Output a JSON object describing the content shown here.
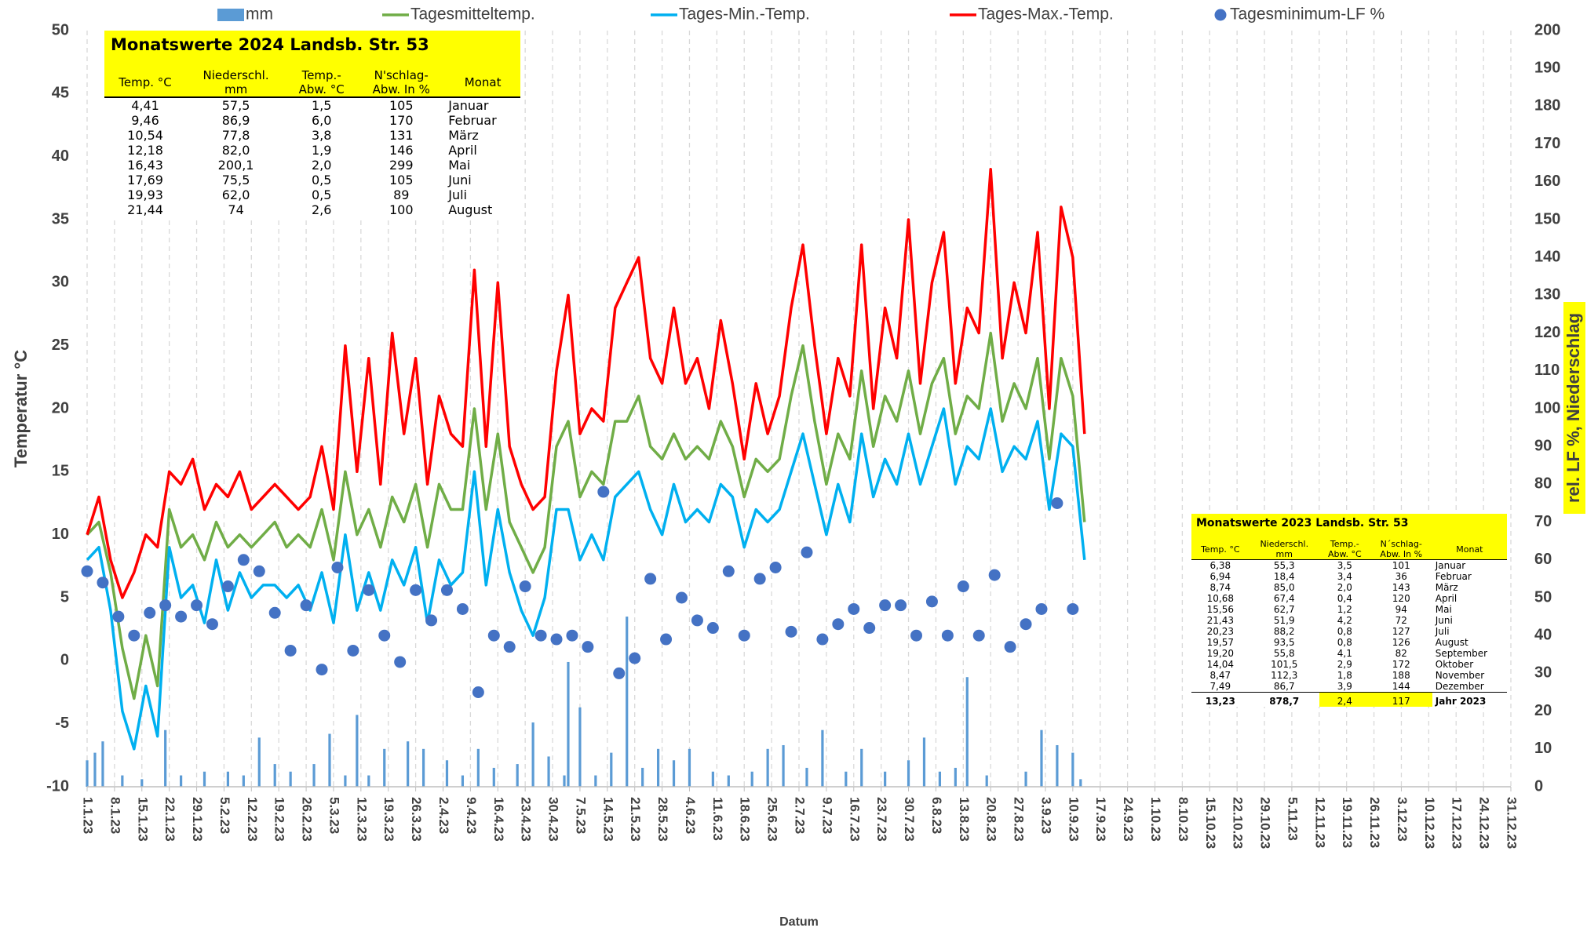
{
  "chart_data": {
    "type": "combo",
    "y_axis_label": "Temperatur °C",
    "y2_axis_label": "rel. LF %, Niederschlag",
    "x_axis_label": "Datum",
    "xlim": [
      0,
      364
    ],
    "xticks": [
      {
        "value": 0,
        "label": "1.1.23"
      },
      {
        "value": 7,
        "label": "8.1.23"
      },
      {
        "value": 14,
        "label": "15.1.23"
      },
      {
        "value": 21,
        "label": "22.1.23"
      },
      {
        "value": 28,
        "label": "29.1.23"
      },
      {
        "value": 35,
        "label": "5.2.23"
      },
      {
        "value": 42,
        "label": "12.2.23"
      },
      {
        "value": 49,
        "label": "19.2.23"
      },
      {
        "value": 56,
        "label": "26.2.23"
      },
      {
        "value": 63,
        "label": "5.3.23"
      },
      {
        "value": 70,
        "label": "12.3.23"
      },
      {
        "value": 77,
        "label": "19.3.23"
      },
      {
        "value": 84,
        "label": "26.3.23"
      },
      {
        "value": 91,
        "label": "2.4.23"
      },
      {
        "value": 98,
        "label": "9.4.23"
      },
      {
        "value": 105,
        "label": "16.4.23"
      },
      {
        "value": 112,
        "label": "23.4.23"
      },
      {
        "value": 119,
        "label": "30.4.23"
      },
      {
        "value": 126,
        "label": "7.5.23"
      },
      {
        "value": 133,
        "label": "14.5.23"
      },
      {
        "value": 140,
        "label": "21.5.23"
      },
      {
        "value": 147,
        "label": "28.5.23"
      },
      {
        "value": 154,
        "label": "4.6.23"
      },
      {
        "value": 161,
        "label": "11.6.23"
      },
      {
        "value": 168,
        "label": "18.6.23"
      },
      {
        "value": 175,
        "label": "25.6.23"
      },
      {
        "value": 182,
        "label": "2.7.23"
      },
      {
        "value": 189,
        "label": "9.7.23"
      },
      {
        "value": 196,
        "label": "16.7.23"
      },
      {
        "value": 203,
        "label": "23.7.23"
      },
      {
        "value": 210,
        "label": "30.7.23"
      },
      {
        "value": 217,
        "label": "6.8.23"
      },
      {
        "value": 224,
        "label": "13.8.23"
      },
      {
        "value": 231,
        "label": "20.8.23"
      },
      {
        "value": 238,
        "label": "27.8.23"
      },
      {
        "value": 245,
        "label": "3.9.23"
      },
      {
        "value": 252,
        "label": "10.9.23"
      },
      {
        "value": 259,
        "label": "17.9.23"
      },
      {
        "value": 266,
        "label": "24.9.23"
      },
      {
        "value": 273,
        "label": "1.10.23"
      },
      {
        "value": 280,
        "label": "8.10.23"
      },
      {
        "value": 287,
        "label": "15.10.23"
      },
      {
        "value": 294,
        "label": "22.10.23"
      },
      {
        "value": 301,
        "label": "29.10.23"
      },
      {
        "value": 308,
        "label": "5.11.23"
      },
      {
        "value": 315,
        "label": "12.11.23"
      },
      {
        "value": 322,
        "label": "19.11.23"
      },
      {
        "value": 329,
        "label": "26.11.23"
      },
      {
        "value": 336,
        "label": "3.12.23"
      },
      {
        "value": 343,
        "label": "10.12.23"
      },
      {
        "value": 350,
        "label": "17.12.23"
      },
      {
        "value": 357,
        "label": "24.12.23"
      },
      {
        "value": 364,
        "label": "31.12.23"
      }
    ],
    "ylim": [
      -10,
      50
    ],
    "yticks": [
      -10,
      -5,
      0,
      5,
      10,
      15,
      20,
      25,
      30,
      35,
      40,
      45,
      50
    ],
    "y2lim": [
      0,
      200
    ],
    "y2ticks": [
      0,
      10,
      20,
      30,
      40,
      50,
      60,
      70,
      80,
      90,
      100,
      110,
      120,
      130,
      140,
      150,
      160,
      170,
      180,
      190,
      200
    ],
    "grid": "x",
    "x": [
      0,
      3,
      6,
      9,
      12,
      15,
      18,
      21,
      24,
      27,
      30,
      33,
      36,
      39,
      42,
      45,
      48,
      51,
      54,
      57,
      60,
      63,
      66,
      69,
      72,
      75,
      78,
      81,
      84,
      87,
      90,
      93,
      96,
      99,
      102,
      105,
      108,
      111,
      114,
      117,
      120,
      123,
      126,
      129,
      132,
      135,
      138,
      141,
      144,
      147,
      150,
      153,
      156,
      159,
      162,
      165,
      168,
      171,
      174,
      177,
      180,
      183,
      186,
      189,
      192,
      195,
      198,
      201,
      204,
      207,
      210,
      213,
      216,
      219,
      222,
      225,
      228,
      231,
      234,
      237,
      240,
      243,
      246,
      249,
      252,
      255
    ],
    "series": [
      {
        "name": "mm",
        "type": "bar",
        "axis": "y2",
        "color": "#5b9bd5",
        "x": [
          0,
          2,
          4,
          9,
          14,
          20,
          24,
          30,
          36,
          40,
          44,
          48,
          52,
          58,
          62,
          66,
          69,
          72,
          76,
          82,
          86,
          92,
          96,
          100,
          104,
          110,
          114,
          118,
          122,
          123,
          126,
          130,
          134,
          138,
          142,
          146,
          150,
          154,
          160,
          164,
          170,
          174,
          178,
          184,
          188,
          194,
          198,
          204,
          210,
          214,
          218,
          222,
          225,
          230,
          240,
          244,
          248,
          252,
          254
        ],
        "values": [
          7,
          9,
          12,
          3,
          2,
          15,
          3,
          4,
          4,
          3,
          13,
          6,
          4,
          6,
          14,
          3,
          19,
          3,
          10,
          12,
          10,
          7,
          3,
          10,
          5,
          6,
          17,
          8,
          3,
          33,
          21,
          3,
          9,
          45,
          5,
          10,
          7,
          10,
          4,
          3,
          4,
          10,
          11,
          5,
          15,
          4,
          10,
          4,
          7,
          13,
          4,
          5,
          29,
          3,
          4,
          15,
          11,
          9,
          2
        ]
      },
      {
        "name": "Tagesmitteltemp.",
        "type": "line",
        "color": "#70ad47",
        "values": [
          10,
          11,
          7,
          1,
          -3,
          2,
          -2,
          12,
          9,
          10,
          8,
          11,
          9,
          10,
          9,
          10,
          11,
          9,
          10,
          9,
          12,
          8,
          15,
          10,
          12,
          9,
          13,
          11,
          14,
          9,
          14,
          12,
          12,
          20,
          12,
          18,
          11,
          9,
          7,
          9,
          17,
          19,
          13,
          15,
          14,
          19,
          19,
          21,
          17,
          16,
          18,
          16,
          17,
          16,
          19,
          17,
          13,
          16,
          15,
          16,
          21,
          25,
          19,
          14,
          18,
          16,
          23,
          17,
          21,
          19,
          23,
          18,
          22,
          24,
          18,
          21,
          20,
          26,
          19,
          22,
          20,
          24,
          16,
          24,
          21,
          11
        ]
      },
      {
        "name": "Tages-Min.-Temp.",
        "type": "line",
        "color": "#00b0f0",
        "values": [
          8,
          9,
          4,
          -4,
          -7,
          -2,
          -6,
          9,
          5,
          6,
          3,
          8,
          4,
          7,
          5,
          6,
          6,
          5,
          6,
          4,
          7,
          3,
          10,
          4,
          7,
          4,
          8,
          6,
          9,
          3,
          8,
          6,
          7,
          15,
          6,
          12,
          7,
          4,
          2,
          5,
          12,
          12,
          8,
          10,
          8,
          13,
          14,
          15,
          12,
          10,
          14,
          11,
          12,
          11,
          14,
          13,
          9,
          12,
          11,
          12,
          15,
          18,
          14,
          10,
          14,
          11,
          18,
          13,
          16,
          14,
          18,
          14,
          17,
          20,
          14,
          17,
          16,
          20,
          15,
          17,
          16,
          19,
          12,
          18,
          17,
          8
        ]
      },
      {
        "name": "Tages-Max.-Temp.",
        "type": "line",
        "color": "#ff0000",
        "values": [
          10,
          13,
          8,
          5,
          7,
          10,
          9,
          15,
          14,
          16,
          12,
          14,
          13,
          15,
          12,
          13,
          14,
          13,
          12,
          13,
          17,
          12,
          25,
          15,
          24,
          14,
          26,
          18,
          24,
          14,
          21,
          18,
          17,
          31,
          17,
          30,
          17,
          14,
          12,
          13,
          23,
          29,
          18,
          20,
          19,
          28,
          30,
          32,
          24,
          22,
          28,
          22,
          24,
          20,
          27,
          22,
          16,
          22,
          18,
          21,
          28,
          33,
          25,
          18,
          24,
          21,
          33,
          20,
          28,
          24,
          35,
          22,
          30,
          34,
          22,
          28,
          26,
          39,
          24,
          30,
          26,
          34,
          20,
          36,
          32,
          18
        ]
      },
      {
        "name": "Tagesminimum-LF %",
        "type": "scatter",
        "axis": "y2",
        "color": "#4472c4",
        "x": [
          0,
          4,
          8,
          12,
          16,
          20,
          24,
          28,
          32,
          36,
          40,
          44,
          48,
          52,
          56,
          60,
          64,
          68,
          72,
          76,
          80,
          84,
          88,
          92,
          96,
          100,
          104,
          108,
          112,
          116,
          120,
          124,
          128,
          132,
          136,
          140,
          144,
          148,
          152,
          156,
          160,
          164,
          168,
          172,
          176,
          180,
          184,
          188,
          192,
          196,
          200,
          204,
          208,
          212,
          216,
          220,
          224,
          228,
          232,
          236,
          240,
          244,
          248,
          252
        ],
        "values": [
          57,
          54,
          45,
          40,
          46,
          48,
          45,
          48,
          43,
          53,
          60,
          57,
          46,
          36,
          48,
          31,
          58,
          36,
          52,
          40,
          33,
          52,
          44,
          52,
          47,
          25,
          40,
          37,
          53,
          40,
          39,
          40,
          37,
          78,
          30,
          34,
          55,
          39,
          50,
          44,
          42,
          57,
          40,
          55,
          58,
          41,
          62,
          39,
          43,
          47,
          42,
          48,
          48,
          40,
          49,
          40,
          53,
          40,
          56,
          37,
          43,
          47,
          75,
          47
        ]
      }
    ]
  },
  "tables": [
    {
      "title": "Monatswerte 2024  Landsb. Str. 53",
      "header": [
        [
          "Temp. °C"
        ],
        [
          "Niederschl.",
          "mm"
        ],
        [
          "Temp.-",
          "Abw. °C"
        ],
        [
          "N'schlag-",
          "Abw. In %"
        ],
        [
          "Monat"
        ]
      ],
      "rows": [
        [
          "4,41",
          "57,5",
          "1,5",
          "105",
          "Januar"
        ],
        [
          "9,46",
          "86,9",
          "6,0",
          "170",
          "Februar"
        ],
        [
          "10,54",
          "77,8",
          "3,8",
          "131",
          "März"
        ],
        [
          "12,18",
          "82,0",
          "1,9",
          "146",
          "April"
        ],
        [
          "16,43",
          "200,1",
          "2,0",
          "299",
          "Mai"
        ],
        [
          "17,69",
          "75,5",
          "0,5",
          "105",
          "Juni"
        ],
        [
          "19,93",
          "62,0",
          "0,5",
          "89",
          "Juli"
        ],
        [
          "21,44",
          "74",
          "2,6",
          "100",
          "August"
        ]
      ]
    },
    {
      "title": "Monatswerte 2023  Landsb. Str. 53",
      "header": [
        [
          "Temp. °C"
        ],
        [
          "Niederschl.",
          "mm"
        ],
        [
          "Temp.-",
          "Abw. °C"
        ],
        [
          "N´schlag-",
          "Abw. In %"
        ],
        [
          "Monat"
        ]
      ],
      "rows": [
        [
          "6,38",
          "55,3",
          "3,5",
          "101",
          "Januar"
        ],
        [
          "6,94",
          "18,4",
          "3,4",
          "36",
          "Februar"
        ],
        [
          "8,74",
          "85,0",
          "2,0",
          "143",
          "März"
        ],
        [
          "10,68",
          "67,4",
          "0,4",
          "120",
          "April"
        ],
        [
          "15,56",
          "62,7",
          "1,2",
          "94",
          "Mai"
        ],
        [
          "21,43",
          "51,9",
          "4,2",
          "72",
          "Juni"
        ],
        [
          "20,23",
          "88,2",
          "0,8",
          "127",
          "Juli"
        ],
        [
          "19,57",
          "93,5",
          "0,8",
          "126",
          "August"
        ],
        [
          "19,20",
          "55,8",
          "4,1",
          "82",
          "September"
        ],
        [
          "14,04",
          "101,5",
          "2,9",
          "172",
          "Oktober"
        ],
        [
          "8,47",
          "112,3",
          "1,8",
          "188",
          "November"
        ],
        [
          "7,49",
          "86,7",
          "3,9",
          "144",
          "Dezember"
        ]
      ],
      "total": [
        "13,23",
        "878,7",
        "2,4",
        "117",
        "Jahr 2023"
      ]
    }
  ]
}
